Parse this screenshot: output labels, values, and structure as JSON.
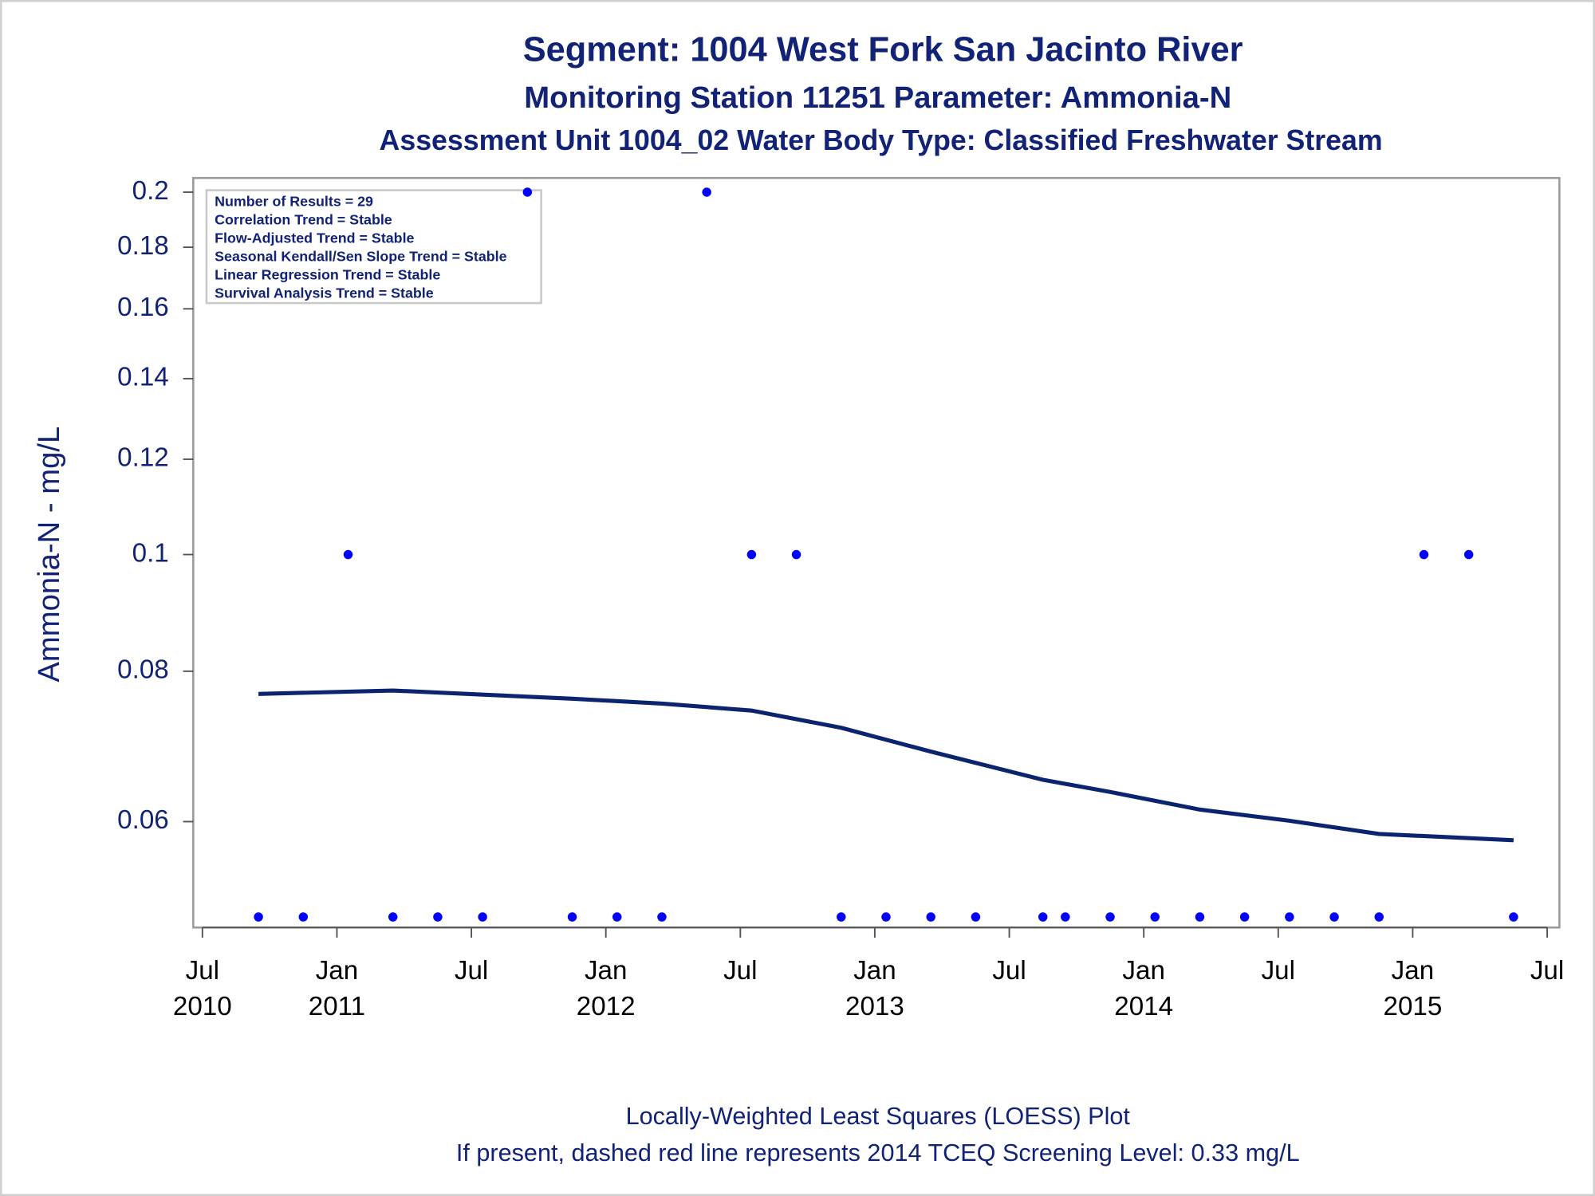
{
  "chart_data": {
    "type": "scatter",
    "title": "Segment: 1004  West Fork San Jacinto River",
    "subtitle": "Monitoring Station 11251 Parameter: Ammonia-N",
    "subtitle2": "Assessment Unit 1004_02   Water Body Type: Classified Freshwater Stream",
    "y_label": "Ammonia-N - mg/L",
    "annotations": [
      "Number of Results = 29",
      "Correlation Trend = Stable",
      "Flow-Adjusted Trend = Stable",
      "Seasonal Kendall/Sen Slope Trend = Stable",
      "Linear Regression Trend = Stable",
      "Survival Analysis Trend = Stable"
    ],
    "footnotes": [
      "Locally-Weighted Least Squares (LOESS) Plot",
      "If present, dashed red line represents 2014 TCEQ Screening Level: 0.33 mg/L"
    ],
    "log_y": true,
    "xlim": [
      "2010-07",
      "2015-07"
    ],
    "xticks": [
      {
        "value": "2010-07",
        "label": [
          "Jul",
          "2010"
        ]
      },
      {
        "value": "2011-01",
        "label": [
          "Jan",
          "2011"
        ]
      },
      {
        "value": "2011-07",
        "label": [
          "Jul"
        ]
      },
      {
        "value": "2012-01",
        "label": [
          "Jan",
          "2012"
        ]
      },
      {
        "value": "2012-07",
        "label": [
          "Jul"
        ]
      },
      {
        "value": "2013-01",
        "label": [
          "Jan",
          "2013"
        ]
      },
      {
        "value": "2013-07",
        "label": [
          "Jul"
        ]
      },
      {
        "value": "2014-01",
        "label": [
          "Jan",
          "2014"
        ]
      },
      {
        "value": "2014-07",
        "label": [
          "Jul"
        ]
      },
      {
        "value": "2015-01",
        "label": [
          "Jan",
          "2015"
        ]
      },
      {
        "value": "2015-07",
        "label": [
          "Jul"
        ]
      }
    ],
    "ylim": [
      0.049,
      0.2055
    ],
    "yticks": [
      0.06,
      0.08,
      0.1,
      0.12,
      0.14,
      0.16,
      0.18,
      0.2
    ],
    "x": [
      "2010-09",
      "2010-11",
      "2011-01",
      "2011-03",
      "2011-05",
      "2011-07",
      "2011-09",
      "2011-11",
      "2012-01",
      "2012-03",
      "2012-05",
      "2012-07",
      "2012-09",
      "2012-11",
      "2013-01",
      "2013-03",
      "2013-05",
      "2013-08",
      "2013-09",
      "2013-11",
      "2014-01",
      "2014-03",
      "2014-05",
      "2014-07",
      "2014-09",
      "2014-11",
      "2015-01",
      "2015-03",
      "2015-05"
    ],
    "values": [
      0.05,
      0.05,
      0.1,
      0.05,
      0.05,
      0.05,
      0.2,
      0.05,
      0.05,
      0.05,
      0.2,
      0.1,
      0.1,
      0.05,
      0.05,
      0.05,
      0.05,
      0.05,
      0.05,
      0.05,
      0.05,
      0.05,
      0.05,
      0.05,
      0.05,
      0.05,
      0.1,
      0.1,
      0.05
    ],
    "color": "#0000ff",
    "loess": {
      "color": "#0a2470",
      "x": [
        "2010-09",
        "2011-03",
        "2011-07",
        "2011-11",
        "2012-03",
        "2012-07",
        "2012-11",
        "2013-03",
        "2013-08",
        "2013-11",
        "2014-03",
        "2014-07",
        "2014-11",
        "2015-05"
      ],
      "values": [
        0.0766,
        0.0771,
        0.0765,
        0.0759,
        0.0752,
        0.0742,
        0.0718,
        0.0686,
        0.065,
        0.0635,
        0.0614,
        0.0601,
        0.0586,
        0.0579
      ]
    }
  }
}
